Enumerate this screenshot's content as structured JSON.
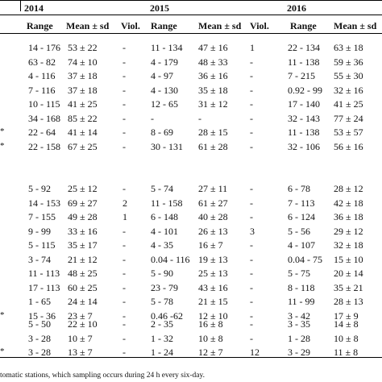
{
  "years": [
    "2014",
    "2015",
    "2016"
  ],
  "headers": {
    "y2014": [
      "Range",
      "Mean ± sd",
      "Viol."
    ],
    "y2015": [
      "Range",
      "Mean ± sd",
      "Viol."
    ],
    "y2016": [
      "Range",
      "Mean ± sd"
    ]
  },
  "groups": [
    {
      "rows": [
        {
          "mark": "",
          "c": [
            "14 - 176",
            "53 ± 22",
            "-",
            "11 - 134",
            "47 ± 16",
            "1",
            "22 - 134",
            "63 ± 18"
          ]
        },
        {
          "mark": "",
          "c": [
            "63 - 82",
            "74 ± 10",
            "-",
            "4 - 179",
            "48 ± 33",
            "-",
            "11 - 138",
            "59 ± 36"
          ]
        },
        {
          "mark": "",
          "c": [
            "4 - 116",
            "37 ± 18",
            "-",
            "4 - 97",
            "36 ± 16",
            "-",
            "7 - 215",
            "55 ± 30"
          ]
        },
        {
          "mark": "",
          "c": [
            "7 - 116",
            "37 ± 18",
            "-",
            "4 - 130",
            "35 ± 18",
            "-",
            "0.92 - 99",
            "32 ± 16"
          ]
        },
        {
          "mark": "",
          "c": [
            "10 - 115",
            "41 ± 25",
            "-",
            "12 - 65",
            "31 ± 12",
            "-",
            "17 - 140",
            "41 ± 25"
          ]
        },
        {
          "mark": "",
          "c": [
            "34 - 168",
            "85 ± 22",
            "-",
            "-",
            "-",
            "-",
            "32 - 143",
            "77 ± 24"
          ]
        },
        {
          "mark": "*",
          "c": [
            "22 - 64",
            "41 ± 14",
            "-",
            "8 - 69",
            "28 ± 15",
            "-",
            "11 - 138",
            "53 ± 57"
          ]
        },
        {
          "mark": "*",
          "c": [
            "22 - 158",
            "67 ± 25",
            "-",
            "30 - 131",
            "61 ± 28",
            "-",
            "32 - 106",
            "56 ± 16"
          ]
        }
      ]
    },
    {
      "rows": [
        {
          "mark": "",
          "c": [
            "5 - 92",
            "25 ± 12",
            "-",
            "5 - 74",
            "27 ± 11",
            "-",
            "6 - 78",
            "28 ± 12"
          ]
        },
        {
          "mark": "",
          "c": [
            "14 - 153",
            "69 ± 27",
            "2",
            "11 - 158",
            "61 ± 27",
            "-",
            "7 - 113",
            "42 ± 18"
          ]
        },
        {
          "mark": "",
          "c": [
            "7 - 155",
            "49 ± 28",
            "1",
            "6 - 148",
            "40 ± 28",
            "-",
            "6 - 124",
            "36 ± 18"
          ]
        },
        {
          "mark": "",
          "c": [
            "9 - 99",
            "33 ± 16",
            "-",
            "4 - 101",
            "26 ± 13",
            "3",
            "5 - 56",
            "29 ± 12"
          ]
        },
        {
          "mark": "",
          "c": [
            "5 - 115",
            "35 ± 17",
            "-",
            "4 - 35",
            "16 ± 7",
            "-",
            "4 - 107",
            "32 ± 18"
          ]
        },
        {
          "mark": "",
          "c": [
            "3 - 74",
            "21 ± 12",
            "-",
            "0.04 - 116",
            "19 ± 13",
            "-",
            "0.04 - 75",
            "15 ± 10"
          ]
        },
        {
          "mark": "",
          "c": [
            "11 - 113",
            "48 ± 25",
            "-",
            "5 - 90",
            "25 ± 13",
            "-",
            "5 - 75",
            "20 ± 14"
          ]
        },
        {
          "mark": "",
          "c": [
            "17 - 113",
            "60 ± 25",
            "-",
            "23 - 79",
            "43 ± 16",
            "-",
            "8 - 118",
            "35 ± 21"
          ]
        },
        {
          "mark": "",
          "c": [
            "1 - 65",
            "24 ± 14",
            "-",
            "5 - 78",
            "21 ± 15",
            "-",
            "11 - 99",
            "28 ± 13"
          ]
        },
        {
          "mark": "*",
          "c": [
            "15 - 36",
            "23 ± 7",
            "-",
            "0.46 -62",
            "12 ± 10",
            "-",
            "3 - 42",
            "17 ± 9"
          ]
        }
      ]
    },
    {
      "rows": [
        {
          "mark": "",
          "c": [
            "5 - 50",
            "22 ± 10",
            "-",
            "2 - 35",
            "16 ± 8",
            "-",
            "3 - 35",
            "14 ± 8"
          ]
        },
        {
          "mark": "",
          "c": [
            "3 - 28",
            "10 ± 7",
            "-",
            "1 - 32",
            "10 ± 8",
            "-",
            "1 - 28",
            "10 ± 8"
          ]
        },
        {
          "mark": "*",
          "c": [
            "3 - 28",
            "13 ± 7",
            "-",
            "1 - 24",
            "12 ± 7",
            "12",
            "3 - 29",
            "11 ± 8"
          ]
        }
      ]
    }
  ],
  "footnote": "tomatic stations, which sampling occurs during 24 h every six-day."
}
